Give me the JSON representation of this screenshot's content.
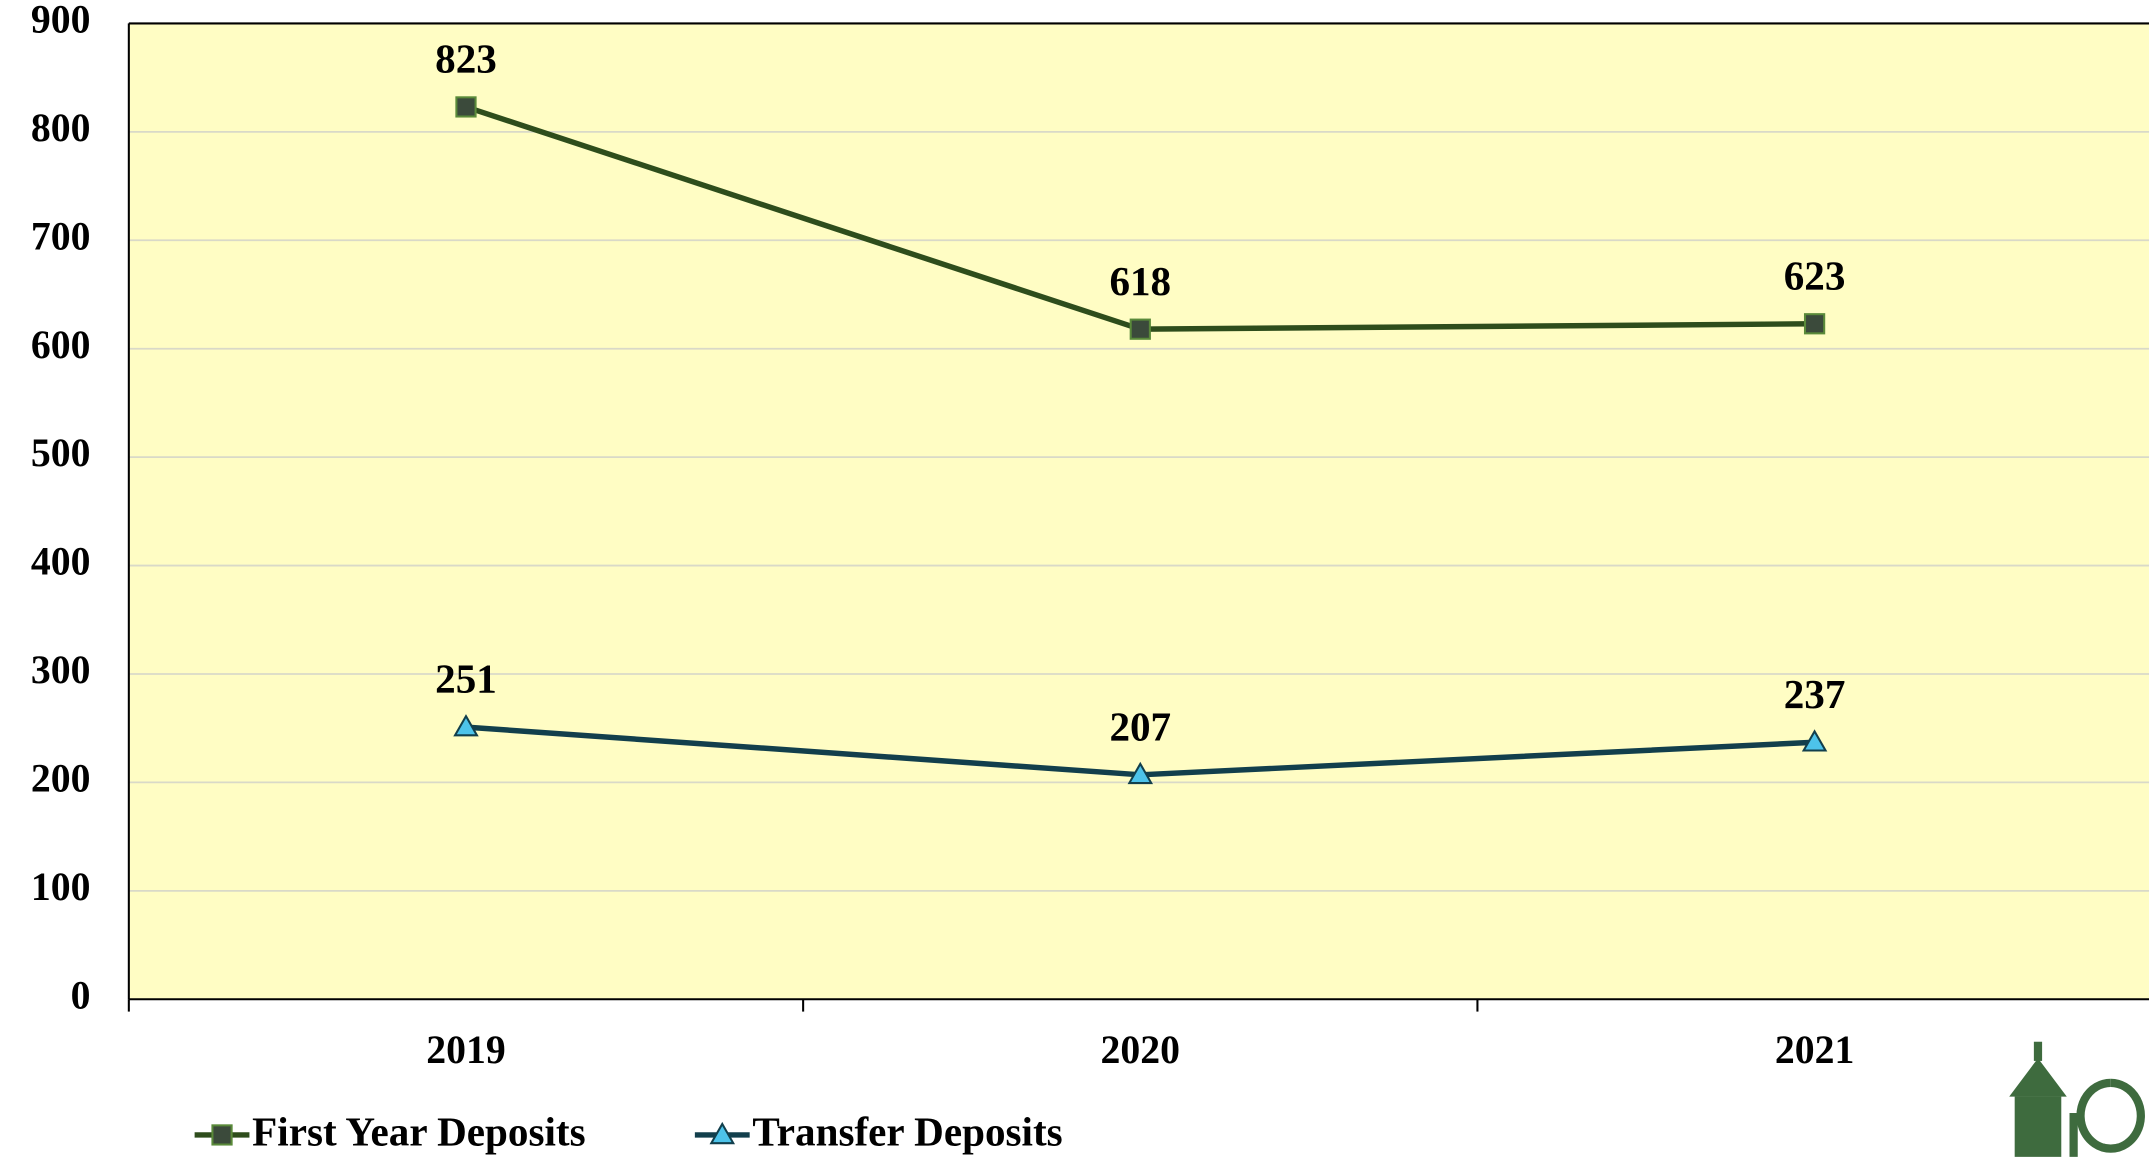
{
  "chart_data": {
    "type": "line",
    "categories": [
      "2019",
      "2020",
      "2021"
    ],
    "series": [
      {
        "name": "First Year Deposits",
        "color": "#2e4d1c",
        "marker_color": "#3b4a3b",
        "marker": "square",
        "values": [
          823,
          618,
          623
        ]
      },
      {
        "name": "Transfer Deposits",
        "color": "#123f4c",
        "marker_color": "#4dc3ea",
        "marker": "triangle",
        "values": [
          251,
          207,
          237
        ]
      }
    ],
    "ylim": [
      0,
      900
    ],
    "yticks": [
      0,
      100,
      200,
      300,
      400,
      500,
      600,
      700,
      800,
      900
    ],
    "grid": true,
    "legend": "bottom-left",
    "background": "#fffdc4"
  }
}
